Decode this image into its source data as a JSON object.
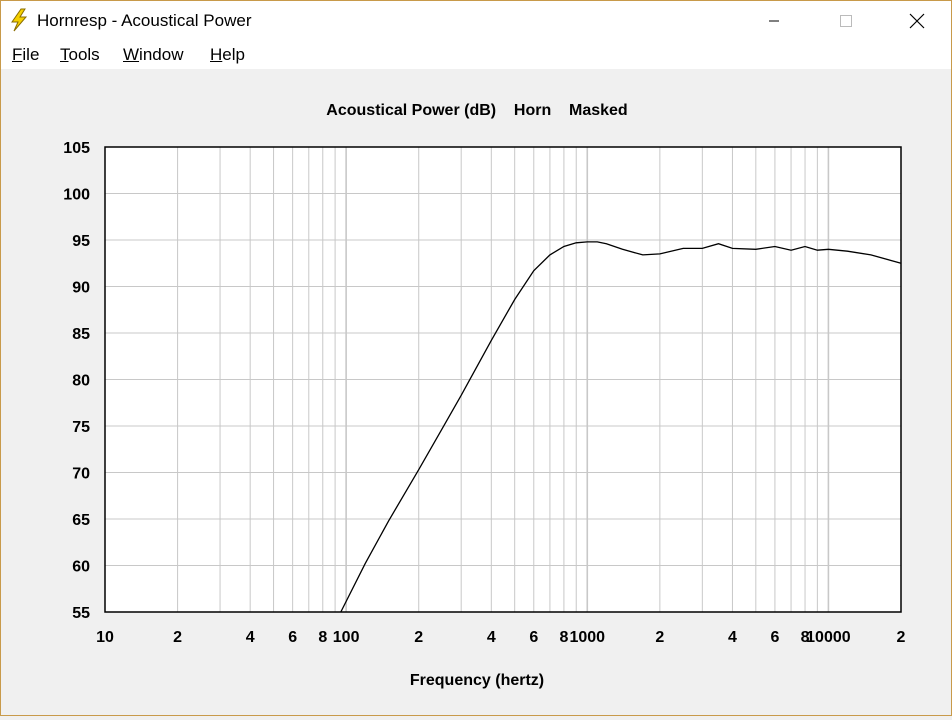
{
  "window": {
    "title": "Hornresp - Acoustical Power",
    "icon": "lightning-bolt-icon",
    "controls": {
      "minimize": "minimize-icon",
      "maximize": "maximize-icon",
      "close": "close-icon"
    }
  },
  "menu": {
    "items": [
      {
        "accel": "F",
        "rest": "ile"
      },
      {
        "accel": "T",
        "rest": "ools"
      },
      {
        "accel": "W",
        "rest": "indow"
      },
      {
        "accel": "H",
        "rest": "elp"
      }
    ]
  },
  "chart_data": {
    "type": "line",
    "title": "Acoustical Power (dB)    Horn    Masked",
    "xlabel": "Frequency (hertz)",
    "ylabel": "",
    "xscale": "log",
    "xlim": [
      10,
      20000
    ],
    "ylim": [
      55,
      105
    ],
    "y_ticks": [
      "105",
      "100",
      "95",
      "90",
      "85",
      "80",
      "75",
      "70",
      "65",
      "60",
      "55"
    ],
    "x_tick_labels": [
      {
        "value": 10,
        "label": "10"
      },
      {
        "value": 20,
        "label": "2"
      },
      {
        "value": 40,
        "label": "4"
      },
      {
        "value": 60,
        "label": "6"
      },
      {
        "value": 80,
        "label": "8"
      },
      {
        "value": 100,
        "label": "100"
      },
      {
        "value": 200,
        "label": "2"
      },
      {
        "value": 400,
        "label": "4"
      },
      {
        "value": 600,
        "label": "6"
      },
      {
        "value": 800,
        "label": "8"
      },
      {
        "value": 1000,
        "label": "1000"
      },
      {
        "value": 2000,
        "label": "2"
      },
      {
        "value": 4000,
        "label": "4"
      },
      {
        "value": 6000,
        "label": "6"
      },
      {
        "value": 8000,
        "label": "8"
      },
      {
        "value": 10000,
        "label": "10000"
      },
      {
        "value": 20000,
        "label": "2"
      }
    ],
    "grid": true,
    "colors": {
      "line": "#000000",
      "grid": "#c8c8c8",
      "plot_bg": "#ffffff"
    },
    "series": [
      {
        "x": [
          95,
          120,
          150,
          200,
          250,
          300,
          400,
          500,
          600,
          700,
          800,
          900,
          1000,
          1100,
          1200,
          1400,
          1700,
          2000,
          2500,
          3000,
          3500,
          4000,
          5000,
          6000,
          7000,
          8000,
          9000,
          10000,
          12000,
          15000,
          20000
        ],
        "y": [
          55,
          60.2,
          64.8,
          70.3,
          74.7,
          78.3,
          84.2,
          88.6,
          91.7,
          93.4,
          94.3,
          94.7,
          94.8,
          94.8,
          94.6,
          94.0,
          93.4,
          93.5,
          94.1,
          94.1,
          94.6,
          94.1,
          94.0,
          94.3,
          93.9,
          94.3,
          93.9,
          94.0,
          93.8,
          93.4,
          92.5
        ]
      }
    ]
  }
}
